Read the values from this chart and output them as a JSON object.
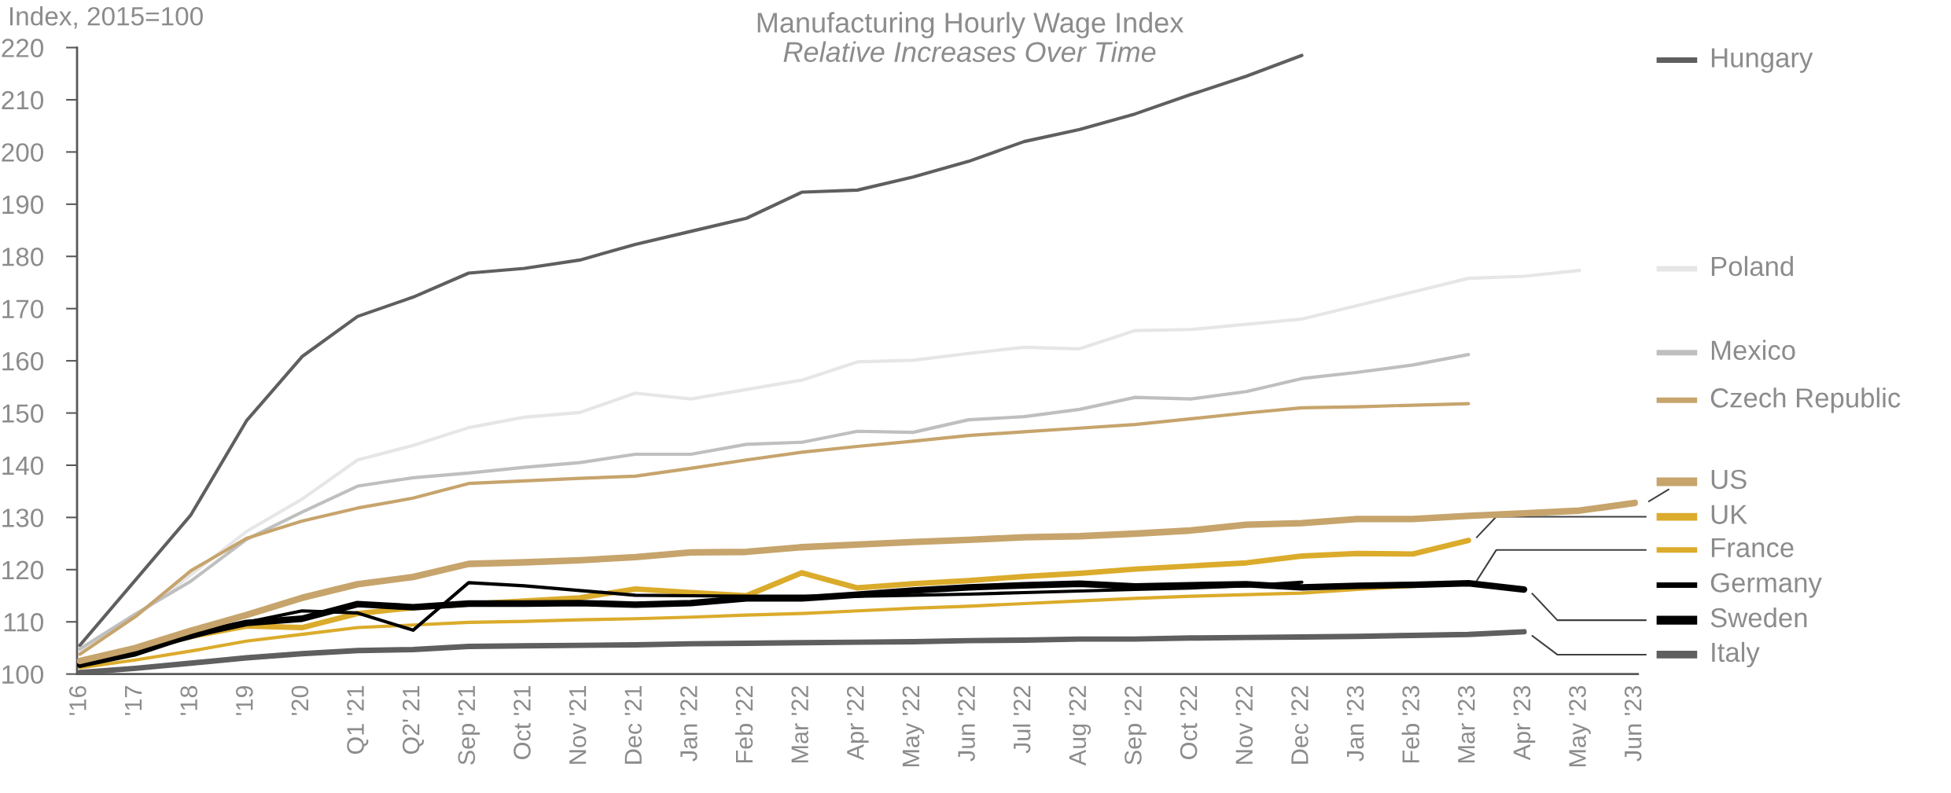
{
  "chart_data": {
    "type": "line",
    "title": "Manufacturing Hourly Wage Index",
    "subtitle": "Relative Increases Over Time",
    "ylabel": "Index, 2015=100",
    "categories": [
      "'16",
      "'17",
      "'18",
      "'19",
      "'20",
      "Q1 '21",
      "Q2' 21",
      "Sep '21",
      "Oct '21",
      "Nov '21",
      "Dec '21",
      "Jan '22",
      "Feb '22",
      "Mar '22",
      "Apr '22",
      "May '22",
      "Jun '22",
      "Jul '22",
      "Aug '22",
      "Sep '22",
      "Oct '22",
      "Nov '22",
      "Dec '22",
      "Jan '23",
      "Feb '23",
      "Mar '23",
      "Apr '23",
      "May '23",
      "Jun '23"
    ],
    "ylim": [
      100,
      220
    ],
    "yticks": [
      100,
      110,
      120,
      130,
      140,
      150,
      160,
      170,
      180,
      190,
      200,
      210,
      220
    ],
    "grid": false,
    "legend": "right",
    "marker": "none",
    "line_style": "solid",
    "series": [
      {
        "name": "Hungary",
        "color": "#5f5f5f",
        "values": [
          105.5,
          118,
          130.5,
          148.5,
          160.8,
          168.5,
          172.2,
          176.8,
          177.7,
          179.3,
          182.3,
          184.8,
          187.3,
          192.3,
          192.7,
          195.2,
          198.2,
          202,
          204.3,
          207.3,
          211,
          214.5,
          218.5,
          null,
          null,
          null,
          null,
          null,
          null
        ]
      },
      {
        "name": "Poland",
        "color": "#e6e6e6",
        "values": [
          104.5,
          111,
          119,
          127.3,
          133.5,
          141,
          143.8,
          147.2,
          149.2,
          150.1,
          153.8,
          152.7,
          154.5,
          156.3,
          159.8,
          160.1,
          161.4,
          162.6,
          162.3,
          165.8,
          166,
          167,
          168,
          170.6,
          173.2,
          175.8,
          176.2,
          177.3,
          null
        ]
      },
      {
        "name": "Mexico",
        "color": "#bfbfbf",
        "values": [
          104.8,
          111.5,
          117.8,
          125.8,
          131,
          136,
          137.6,
          138.5,
          139.6,
          140.5,
          142.1,
          142.1,
          144,
          144.4,
          146.5,
          146.3,
          148.7,
          149.3,
          150.7,
          153,
          152.7,
          154.1,
          156.6,
          157.8,
          159.2,
          161.2,
          null,
          null,
          null
        ]
      },
      {
        "name": "Czech Republic",
        "color": "#c6a46c",
        "values": [
          103.8,
          111,
          119.8,
          126,
          129.3,
          131.8,
          133.7,
          136.5,
          137,
          137.5,
          137.9,
          139.4,
          141,
          142.5,
          143.6,
          144.6,
          145.7,
          146.4,
          147.1,
          147.8,
          148.9,
          150,
          151,
          151.2,
          151.5,
          151.8,
          null,
          null,
          null
        ]
      },
      {
        "name": "US",
        "color": "#c6a46c",
        "values": [
          102.5,
          105,
          108.3,
          111.3,
          114.6,
          117.2,
          118.6,
          121.1,
          121.4,
          121.8,
          122.4,
          123.3,
          123.4,
          124.3,
          124.8,
          125.3,
          125.7,
          126.2,
          126.4,
          126.9,
          127.5,
          128.6,
          128.9,
          129.7,
          129.7,
          130.3,
          130.8,
          131.3,
          132.8
        ]
      },
      {
        "name": "UK",
        "color": "#dbab2b",
        "values": [
          102.4,
          104.6,
          107.2,
          109.2,
          108.9,
          111.6,
          112.7,
          113.4,
          114,
          114.6,
          116.3,
          115.6,
          115,
          119.4,
          116.5,
          117.3,
          117.9,
          118.7,
          119.3,
          120.1,
          120.7,
          121.3,
          122.6,
          123.1,
          123,
          125.6,
          null,
          null,
          null
        ]
      },
      {
        "name": "France",
        "color": "#dbab2b",
        "values": [
          101.2,
          102.7,
          104.4,
          106.3,
          107.6,
          108.9,
          109.4,
          109.9,
          110.1,
          110.4,
          110.6,
          110.9,
          111.3,
          111.6,
          112.1,
          112.6,
          113,
          113.5,
          114,
          114.5,
          114.9,
          115.2,
          115.5,
          116.2,
          116.8,
          117.3,
          null,
          null,
          null
        ]
      },
      {
        "name": "Germany",
        "color": "#000000",
        "values": [
          101.5,
          104.2,
          107,
          109.9,
          112.1,
          111.7,
          108.4,
          117.5,
          116.9,
          116,
          115.1,
          115,
          114.9,
          114.9,
          114.9,
          115.1,
          115.3,
          115.6,
          115.9,
          116.2,
          116.5,
          116.9,
          117.6,
          null,
          null,
          null,
          null,
          null,
          null
        ]
      },
      {
        "name": "Sweden",
        "color": "#000000",
        "values": [
          101.8,
          104,
          107.5,
          109.8,
          110.6,
          113.4,
          112.8,
          113.5,
          113.5,
          113.6,
          113.3,
          113.6,
          114.5,
          114.5,
          115.2,
          116,
          116.6,
          117,
          117.3,
          116.8,
          117,
          117.2,
          116.6,
          116.9,
          117.1,
          117.4,
          116.2,
          null,
          null
        ]
      },
      {
        "name": "Italy",
        "color": "#5f5f5f",
        "values": [
          100.3,
          101.1,
          102.1,
          103.1,
          103.9,
          104.5,
          104.7,
          105.3,
          105.4,
          105.5,
          105.6,
          105.8,
          105.9,
          106,
          106.1,
          106.2,
          106.4,
          106.5,
          106.7,
          106.7,
          106.9,
          107,
          107.1,
          107.2,
          107.4,
          107.6,
          108.1,
          null,
          null
        ]
      }
    ]
  }
}
